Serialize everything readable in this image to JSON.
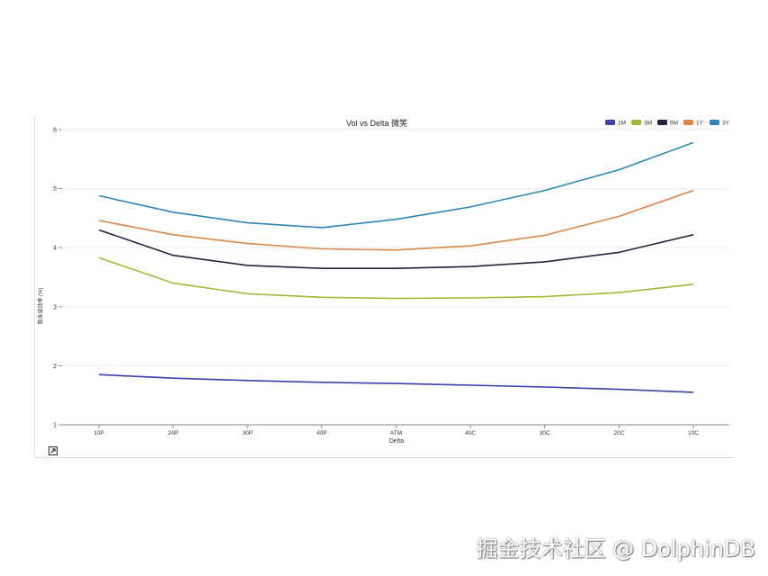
{
  "chart_data": {
    "type": "line",
    "title": "Vol vs Delta 微笑",
    "xlabel": "Delta",
    "ylabel": "隐含波动率 (%)",
    "categories": [
      "10P",
      "20P",
      "30P",
      "40P",
      "ATM",
      "40C",
      "30C",
      "20C",
      "10C"
    ],
    "ylim": [
      1,
      6
    ],
    "yticks": [
      1,
      2,
      3,
      4,
      5,
      6
    ],
    "grid": true,
    "legend_position": "top-right",
    "series": [
      {
        "name": "1M",
        "color": "#3b3fa8",
        "values": [
          1.85,
          1.79,
          1.75,
          1.72,
          1.7,
          1.67,
          1.64,
          1.6,
          1.55
        ]
      },
      {
        "name": "3M",
        "color": "#9bbb39",
        "values": [
          3.83,
          3.4,
          3.22,
          3.16,
          3.14,
          3.15,
          3.17,
          3.24,
          3.38
        ]
      },
      {
        "name": "6M",
        "color": "#22223a",
        "values": [
          4.3,
          3.87,
          3.7,
          3.65,
          3.65,
          3.68,
          3.76,
          3.92,
          4.22
        ]
      },
      {
        "name": "1Y",
        "color": "#d9874a",
        "values": [
          4.46,
          4.22,
          4.07,
          3.98,
          3.96,
          4.03,
          4.21,
          4.53,
          4.97
        ]
      },
      {
        "name": "3Y",
        "color": "#2f86b5",
        "values": [
          4.88,
          4.6,
          4.42,
          4.34,
          4.48,
          4.69,
          4.97,
          5.32,
          5.78
        ]
      }
    ]
  },
  "icons": {
    "expand": "expand-icon"
  },
  "watermark": "掘金技术社区 @ DolphinDB"
}
